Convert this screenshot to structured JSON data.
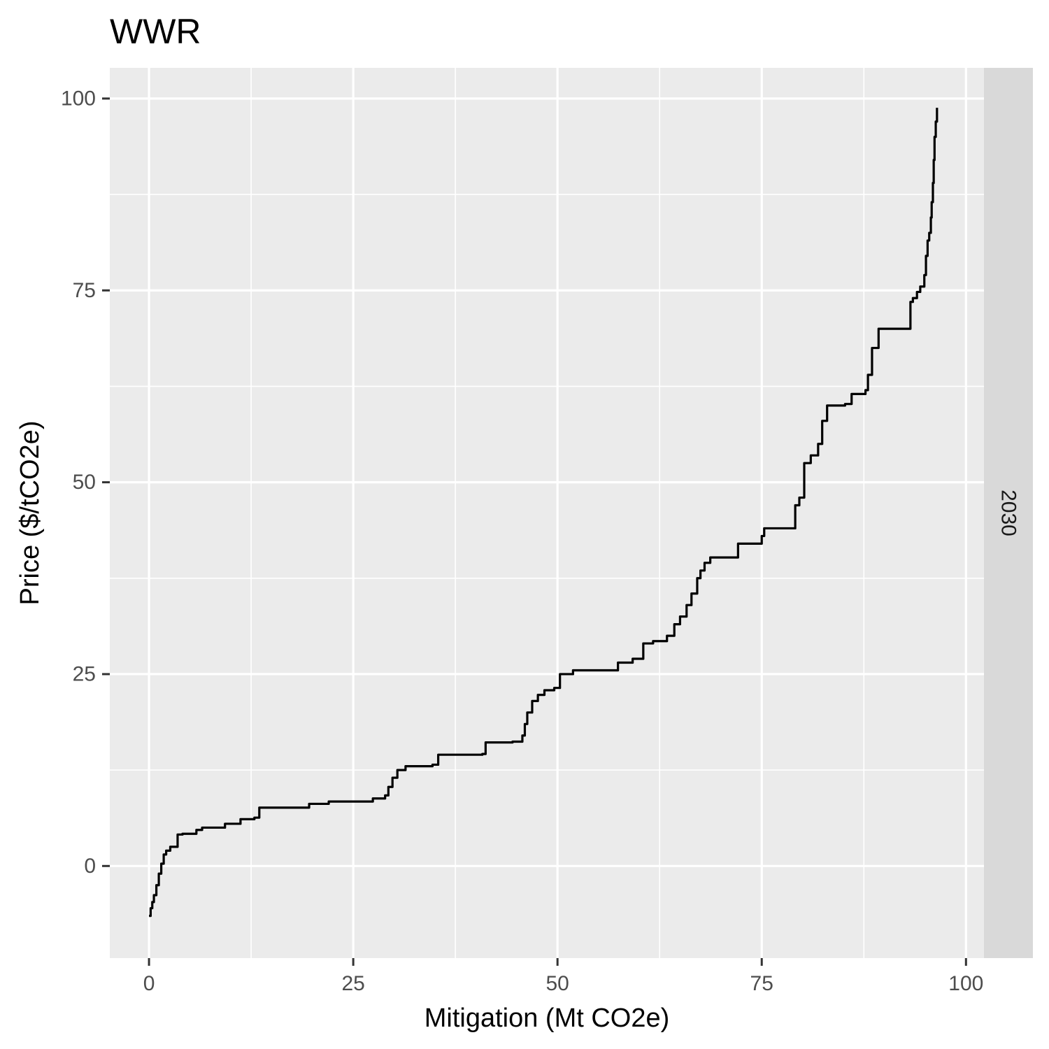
{
  "chart_data": {
    "type": "line",
    "title": "WWR",
    "xlabel": "Mitigation (Mt CO2e)",
    "ylabel": "Price ($/tCO2e)",
    "facet_label": "2030",
    "xlim": [
      -4.8,
      102.2
    ],
    "ylim": [
      -12,
      104
    ],
    "x_ticks": [
      0,
      25,
      50,
      75,
      100
    ],
    "y_ticks": [
      0,
      25,
      50,
      75,
      100
    ],
    "x_tick_labels": [
      "0",
      "25",
      "50",
      "75",
      "100"
    ],
    "y_tick_labels": [
      "0",
      "25",
      "50",
      "75",
      "100"
    ],
    "grid": true,
    "colors": {
      "panel": "#ebebeb",
      "grid": "#ffffff",
      "strip": "#d9d9d9",
      "line": "#000000"
    },
    "series": [
      {
        "step": true,
        "x": [
          0,
          0.2,
          0.4,
          0.6,
          0.9,
          1.2,
          1.5,
          1.8,
          2.1,
          2.6,
          3.5,
          4.1,
          5.8,
          6.5,
          9.3,
          11.2,
          12.9,
          13.5,
          19.6,
          22.0,
          27.4,
          28.9,
          29.3,
          29.8,
          30.4,
          31.4,
          34.7,
          35.4,
          40.8,
          41.2,
          44.5,
          45.7,
          46.0,
          46.3,
          46.9,
          47.6,
          48.4,
          49.6,
          50.3,
          51.9,
          57.4,
          59.2,
          60.5,
          61.7,
          63.4,
          64.3,
          65.0,
          65.8,
          66.4,
          67.1,
          67.5,
          68.0,
          68.7,
          72.1,
          75.0,
          75.3,
          79.1,
          79.6,
          80.2,
          81.0,
          81.9,
          82.4,
          83.0,
          85.2,
          86.0,
          87.7,
          88.0,
          88.5,
          89.3,
          93.2,
          93.5,
          94.0,
          94.4,
          94.9,
          95.1,
          95.3,
          95.5,
          95.7,
          95.8,
          95.95,
          96.05,
          96.15,
          96.3,
          96.45
        ],
        "y": [
          -6.5,
          -5.5,
          -4.7,
          -3.8,
          -2.5,
          -1.0,
          0.3,
          1.5,
          2.0,
          2.5,
          4.1,
          4.2,
          4.7,
          5.0,
          5.5,
          6.1,
          6.3,
          7.6,
          8.1,
          8.4,
          8.8,
          9.2,
          10.3,
          11.5,
          12.5,
          13.0,
          13.2,
          14.5,
          14.6,
          16.1,
          16.2,
          17.0,
          18.5,
          20.0,
          21.5,
          22.3,
          22.9,
          23.2,
          25.0,
          25.5,
          26.5,
          27.0,
          29.0,
          29.3,
          30.0,
          31.5,
          32.5,
          34.0,
          35.5,
          37.5,
          38.5,
          39.5,
          40.2,
          42.0,
          43.0,
          44.0,
          47.0,
          48.0,
          52.5,
          53.5,
          55.0,
          58.0,
          60.0,
          60.2,
          61.5,
          62.0,
          64.0,
          67.5,
          70.0,
          73.5,
          74.0,
          74.8,
          75.5,
          77.0,
          79.5,
          81.5,
          82.5,
          84.5,
          86.5,
          89.0,
          92.0,
          95.0,
          97.0,
          98.8
        ]
      }
    ]
  }
}
